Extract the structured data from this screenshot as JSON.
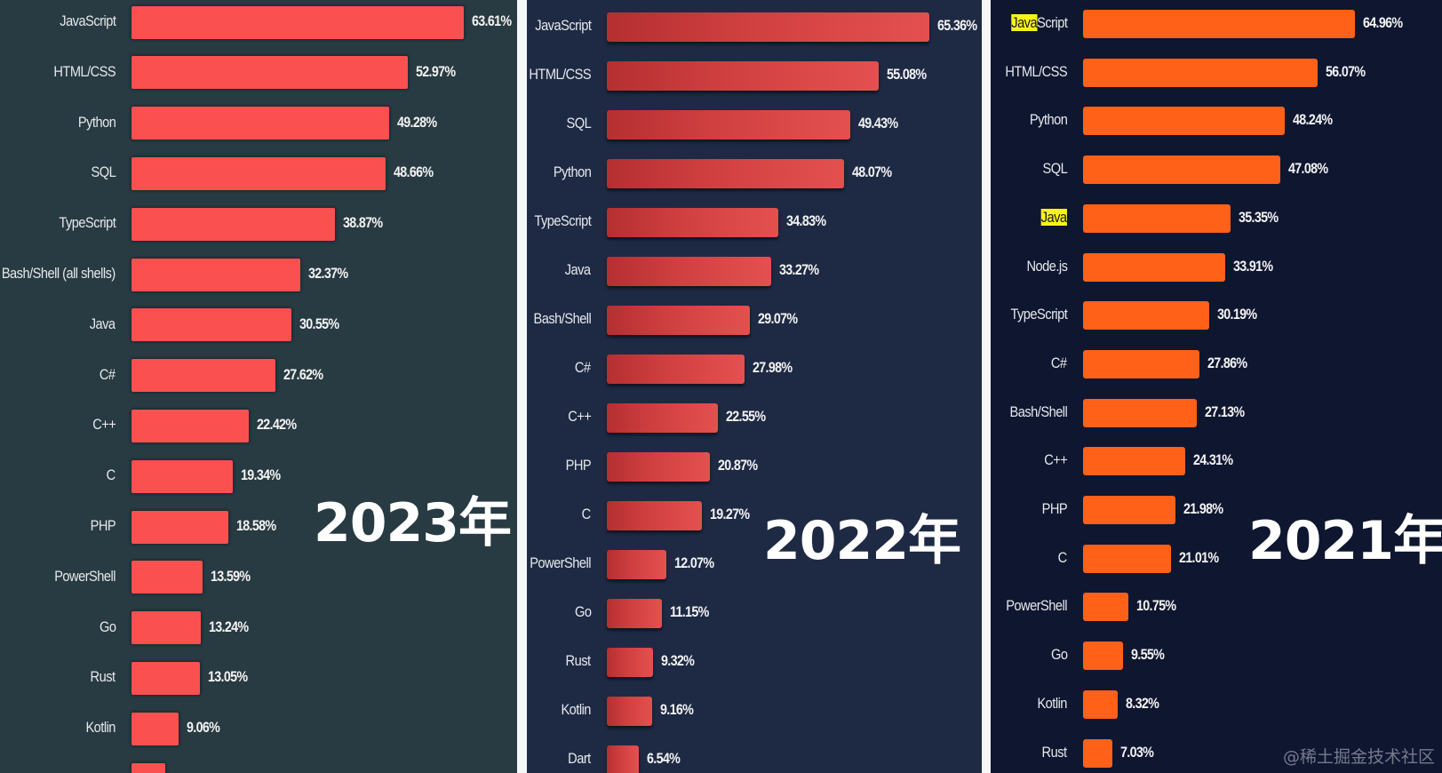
{
  "chart_data": [
    {
      "type": "bar",
      "orientation": "horizontal",
      "title": "2023年",
      "bar_color": "#fa5050",
      "background": "#283a42",
      "categories": [
        "JavaScript",
        "HTML/CSS",
        "Python",
        "SQL",
        "TypeScript",
        "Bash/Shell (all shells)",
        "Java",
        "C#",
        "C++",
        "C",
        "PHP",
        "PowerShell",
        "Go",
        "Rust",
        "Kotlin"
      ],
      "values": [
        63.61,
        52.97,
        49.28,
        48.66,
        38.87,
        32.37,
        30.55,
        27.62,
        22.42,
        19.34,
        18.58,
        13.59,
        13.24,
        13.05,
        9.06
      ],
      "labels": [
        "63.61%",
        "52.97%",
        "49.28%",
        "48.66%",
        "38.87%",
        "32.37%",
        "30.55%",
        "27.62%",
        "22.42%",
        "19.34%",
        "18.58%",
        "13.59%",
        "13.24%",
        "13.05%",
        "9.06%"
      ],
      "unit": "%",
      "note": "one further bar partially visible (cut off) at bottom"
    },
    {
      "type": "bar",
      "orientation": "horizontal",
      "title": "2022年",
      "bar_color": "#d14041",
      "background": "#1e2a44",
      "categories": [
        "JavaScript",
        "HTML/CSS",
        "SQL",
        "Python",
        "TypeScript",
        "Java",
        "Bash/Shell",
        "C#",
        "C++",
        "PHP",
        "C",
        "PowerShell",
        "Go",
        "Rust",
        "Kotlin",
        "Dart"
      ],
      "values": [
        65.36,
        55.08,
        49.43,
        48.07,
        34.83,
        33.27,
        29.07,
        27.98,
        22.55,
        20.87,
        19.27,
        12.07,
        11.15,
        9.32,
        9.16,
        6.54
      ],
      "labels": [
        "65.36%",
        "55.08%",
        "49.43%",
        "48.07%",
        "34.83%",
        "33.27%",
        "29.07%",
        "27.98%",
        "22.55%",
        "20.87%",
        "19.27%",
        "12.07%",
        "11.15%",
        "9.32%",
        "9.16%",
        "6.54%"
      ],
      "unit": "%"
    },
    {
      "type": "bar",
      "orientation": "horizontal",
      "title": "2021年",
      "bar_color": "#ff6119",
      "background": "#0f1630",
      "categories": [
        "JavaScript",
        "HTML/CSS",
        "Python",
        "SQL",
        "Java",
        "Node.js",
        "TypeScript",
        "C#",
        "Bash/Shell",
        "C++",
        "PHP",
        "C",
        "PowerShell",
        "Go",
        "Kotlin",
        "Rust"
      ],
      "values": [
        64.96,
        56.07,
        48.24,
        47.08,
        35.35,
        33.91,
        30.19,
        27.86,
        27.13,
        24.31,
        21.98,
        21.01,
        10.75,
        9.55,
        8.32,
        7.03
      ],
      "labels": [
        "64.96%",
        "56.07%",
        "48.24%",
        "47.08%",
        "35.35%",
        "33.91%",
        "30.19%",
        "27.86%",
        "27.13%",
        "24.31%",
        "21.98%",
        "21.01%",
        "10.75%",
        "9.55%",
        "8.32%",
        "7.03%"
      ],
      "unit": "%",
      "highlights": [
        {
          "category": "JavaScript",
          "highlighted_text": "Java",
          "color": "#f7f21c"
        },
        {
          "category": "Java",
          "highlighted_text": "Java",
          "color": "#f7f21c"
        }
      ]
    }
  ],
  "panels": {
    "p2023": {
      "year_label": "2023年"
    },
    "p2022": {
      "year_label": "2022年"
    },
    "p2021": {
      "year_label": "2021年"
    }
  },
  "watermark": "@稀土掘金技术社区"
}
